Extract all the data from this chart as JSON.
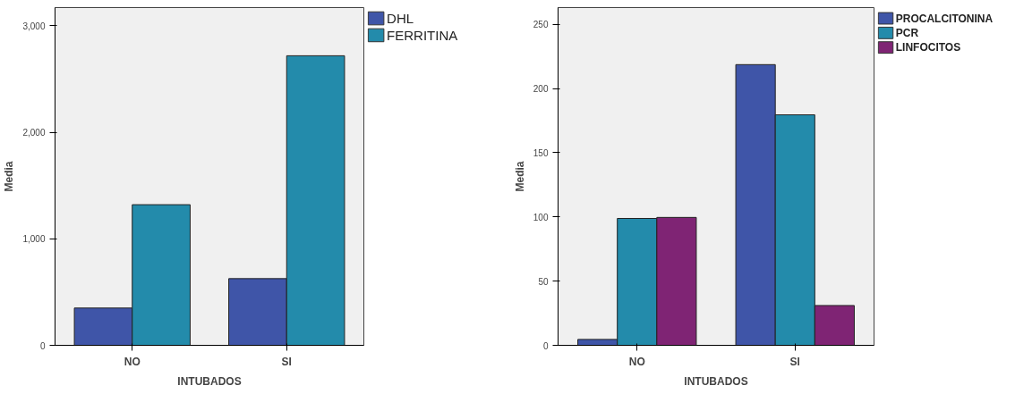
{
  "chart_data": [
    {
      "type": "bar",
      "xlabel": "INTUBADOS",
      "ylabel": "Media",
      "categories": [
        "NO",
        "SI"
      ],
      "ylim": [
        0,
        3170
      ],
      "yticks": [
        0,
        {
          "value": 1000,
          "label": "1,000"
        },
        {
          "value": 2000,
          "label": "2,000"
        },
        {
          "value": 3000,
          "label": "3,000"
        }
      ],
      "legend": "top right",
      "grid": false,
      "series": [
        {
          "name": "DHL",
          "color": "#3f55a8",
          "values": [
            350,
            626
          ]
        },
        {
          "name": "FERRITINA",
          "color": "#238bab",
          "values": [
            1320,
            2718
          ]
        }
      ]
    },
    {
      "type": "bar",
      "xlabel": "INTUBADOS",
      "ylabel": "Media",
      "categories": [
        "NO",
        "SI"
      ],
      "ylim": [
        0,
        263
      ],
      "yticks": [
        0,
        50,
        100,
        150,
        200,
        250
      ],
      "legend": "top right",
      "grid": false,
      "series": [
        {
          "name": "PROCALCITONINA",
          "color": "#3f55a8",
          "values": [
            4.6,
            218.6
          ]
        },
        {
          "name": "PCR",
          "color": "#238bab",
          "values": [
            98.8,
            179.5
          ]
        },
        {
          "name": "LINFOCITOS",
          "color": "#7f2474",
          "values": [
            99.6,
            31
          ]
        }
      ]
    }
  ]
}
